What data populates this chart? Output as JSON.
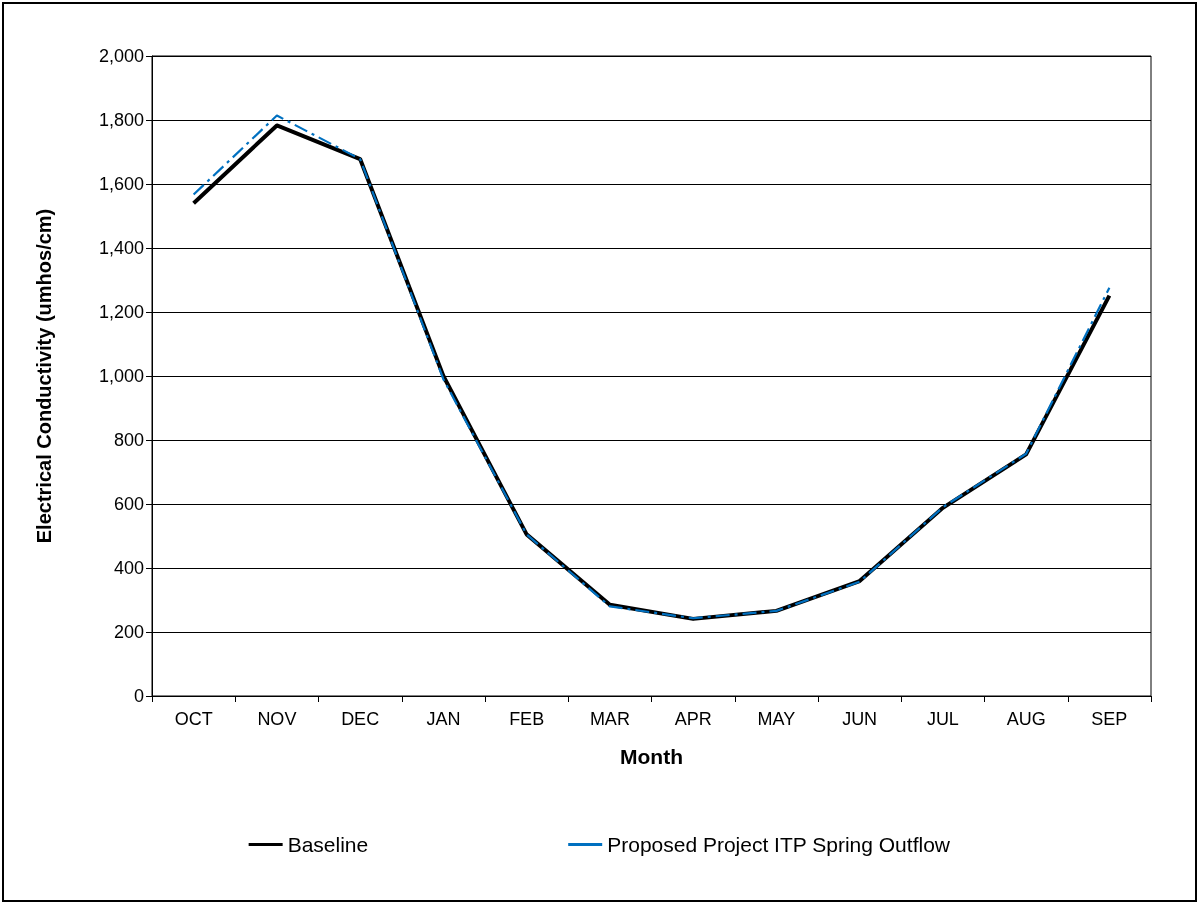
{
  "chart_data": {
    "type": "line",
    "xlabel": "Month",
    "ylabel": "Electrical Conductivity (umhos/cm)",
    "categories": [
      "OCT",
      "NOV",
      "DEC",
      "JAN",
      "FEB",
      "MAR",
      "APR",
      "MAY",
      "JUN",
      "JUL",
      "AUG",
      "SEP"
    ],
    "series": [
      {
        "name": "Baseline",
        "color": "#000000",
        "line_style": "solid",
        "values": [
          1540,
          1783,
          1678,
          1000,
          505,
          285,
          241,
          266,
          359,
          588,
          755,
          1251
        ]
      },
      {
        "name": "Proposed Project ITP Spring Outflow",
        "color": "#0070c0",
        "line_style": "dashed",
        "values": [
          1567,
          1814,
          1678,
          990,
          505,
          280,
          243,
          266,
          357,
          590,
          757,
          1276
        ]
      }
    ],
    "ylim": [
      0,
      2000
    ],
    "yticks": [
      0,
      200,
      400,
      600,
      800,
      {
        "value": 1000,
        "label": "1,000"
      },
      {
        "value": 1200,
        "label": "1,200"
      },
      {
        "value": 1400,
        "label": "1,400"
      },
      {
        "value": 1600,
        "label": "1,600"
      },
      {
        "value": 1800,
        "label": "1,800"
      },
      {
        "value": 2000,
        "label": "2,000"
      }
    ],
    "grid": "y",
    "legend": "bottom",
    "marker": "none"
  }
}
